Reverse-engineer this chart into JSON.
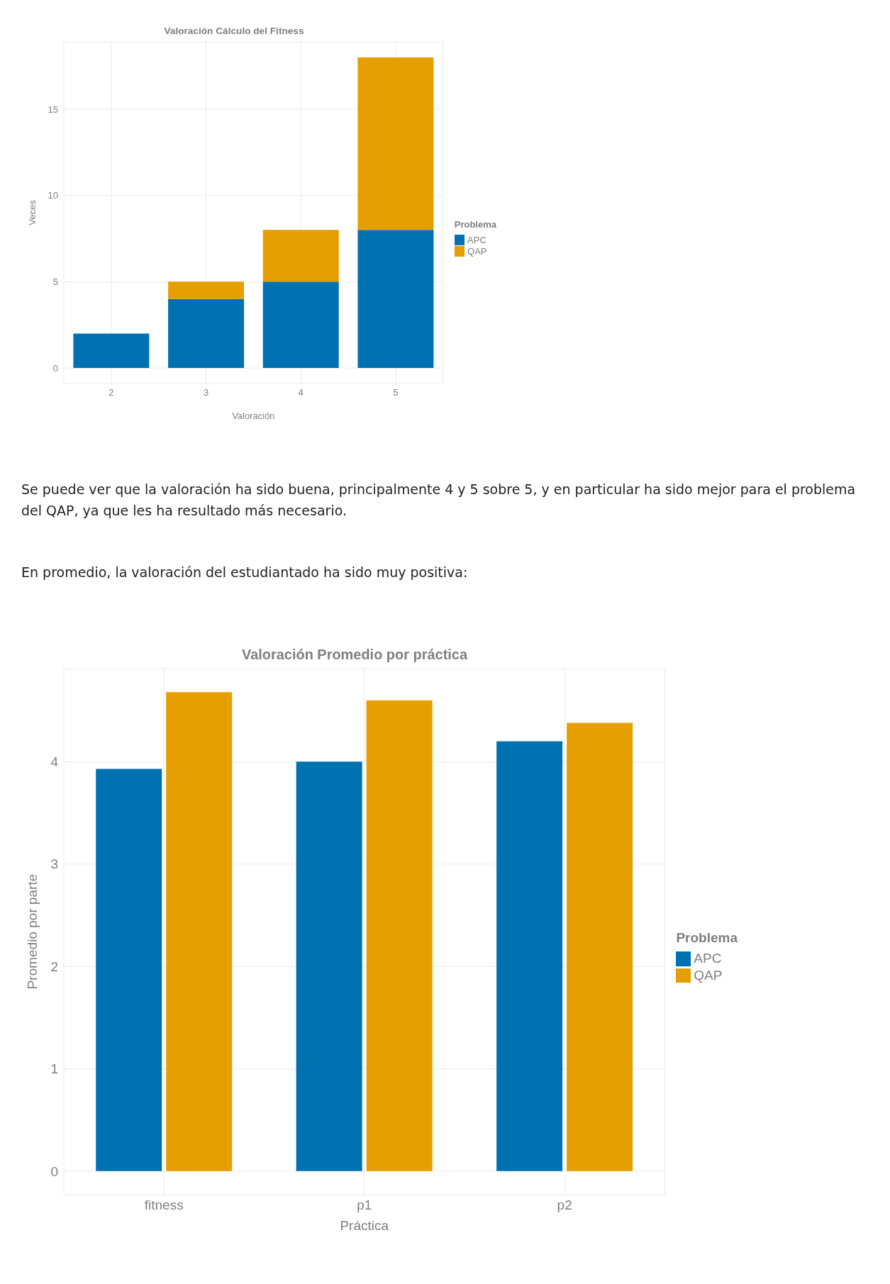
{
  "chart_data": [
    {
      "type": "bar",
      "title": "Valoración Cálculo del Fitness",
      "xlabel": "Valoración",
      "ylabel": "Veces",
      "legend_title": "Problema",
      "categories": [
        "2",
        "3",
        "4",
        "5"
      ],
      "stacked": true,
      "series": [
        {
          "name": "APC",
          "color": "#0072b2",
          "values": [
            2,
            4,
            5,
            8
          ]
        },
        {
          "name": "QAP",
          "color": "#e69f00",
          "values": [
            0,
            1,
            3,
            10
          ]
        }
      ],
      "ylim": [
        -0.9,
        18.9
      ],
      "yticks": [
        0,
        5,
        10,
        15
      ],
      "grid": true,
      "legend": "right",
      "annotations": [
        "Se puede ver que la valoración ha sido buena, principalmente 4 y 5 sobre 5, y en particular ha sido mejor para el problema del QAP, ya que les ha resultado más necesario.",
        "En promedio, la valoración del estudiantado ha sido muy positiva:"
      ]
    },
    {
      "type": "bar",
      "title": "Valoración Promedio por práctica",
      "xlabel": "Práctica",
      "ylabel": "Promedio por parte",
      "legend_title": "Problema",
      "categories": [
        "fitness",
        "p1",
        "p2"
      ],
      "series": [
        {
          "name": "APC",
          "color": "#0072b2",
          "values": [
            3.93,
            4.0,
            4.2
          ]
        },
        {
          "name": "QAP",
          "color": "#e69f00",
          "values": [
            4.68,
            4.6,
            4.38
          ]
        }
      ],
      "ylim": [
        -0.23,
        4.91
      ],
      "yticks": [
        0,
        1,
        2,
        3,
        4
      ],
      "grid": true,
      "legend": "right"
    }
  ]
}
